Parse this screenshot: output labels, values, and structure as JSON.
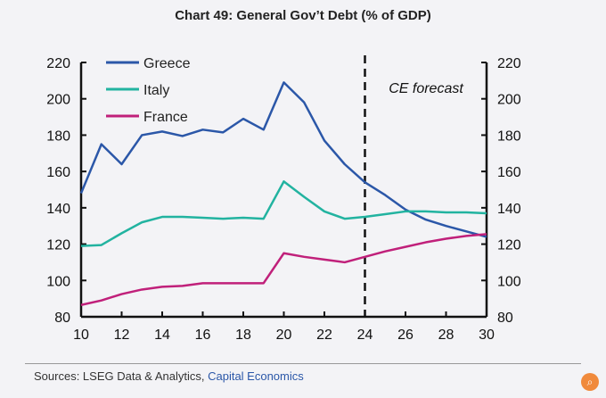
{
  "chart_data": {
    "type": "line",
    "title": "Chart 49: General Gov’t Debt (% of GDP)",
    "x": [
      10,
      11,
      12,
      13,
      14,
      15,
      16,
      17,
      18,
      19,
      20,
      21,
      22,
      23,
      24,
      25,
      26,
      27,
      28,
      29,
      30
    ],
    "xticks": [
      "10",
      "12",
      "14",
      "16",
      "18",
      "20",
      "22",
      "24",
      "26",
      "28",
      "30"
    ],
    "yticks": [
      "80",
      "100",
      "120",
      "140",
      "160",
      "180",
      "200",
      "220"
    ],
    "ylim": [
      80,
      220
    ],
    "xlim": [
      10,
      30
    ],
    "grid": false,
    "legend": "top-left",
    "series": [
      {
        "name": "Greece",
        "color": "#2b57a8",
        "values": [
          148,
          175,
          164,
          180,
          182,
          179.5,
          183,
          181.5,
          189,
          183,
          209,
          198,
          177,
          164,
          154,
          147,
          139,
          133.5,
          130,
          127,
          124
        ]
      },
      {
        "name": "Italy",
        "color": "#22b3a0",
        "values": [
          119,
          119.5,
          126,
          132,
          135,
          135,
          134.5,
          134,
          134.5,
          134,
          154.5,
          146,
          138,
          134,
          135,
          136.5,
          138,
          138,
          137.5,
          137.5,
          137
        ]
      },
      {
        "name": "France",
        "color": "#c0207a",
        "values": [
          86.5,
          89,
          92.5,
          95,
          96.5,
          97,
          98.5,
          98.5,
          98.5,
          98.5,
          115,
          113,
          111.5,
          110,
          113,
          116,
          118.5,
          121,
          123,
          124.5,
          125.5
        ]
      }
    ],
    "annotations": [
      {
        "text": "CE forecast",
        "x": 24,
        "type": "vertical-dashed-line"
      }
    ]
  },
  "footer": {
    "sources_prefix": "Sources: LSEG Data & Analytics, ",
    "sources_highlight": "Capital Economics"
  },
  "corner_icon": "magnify-icon"
}
